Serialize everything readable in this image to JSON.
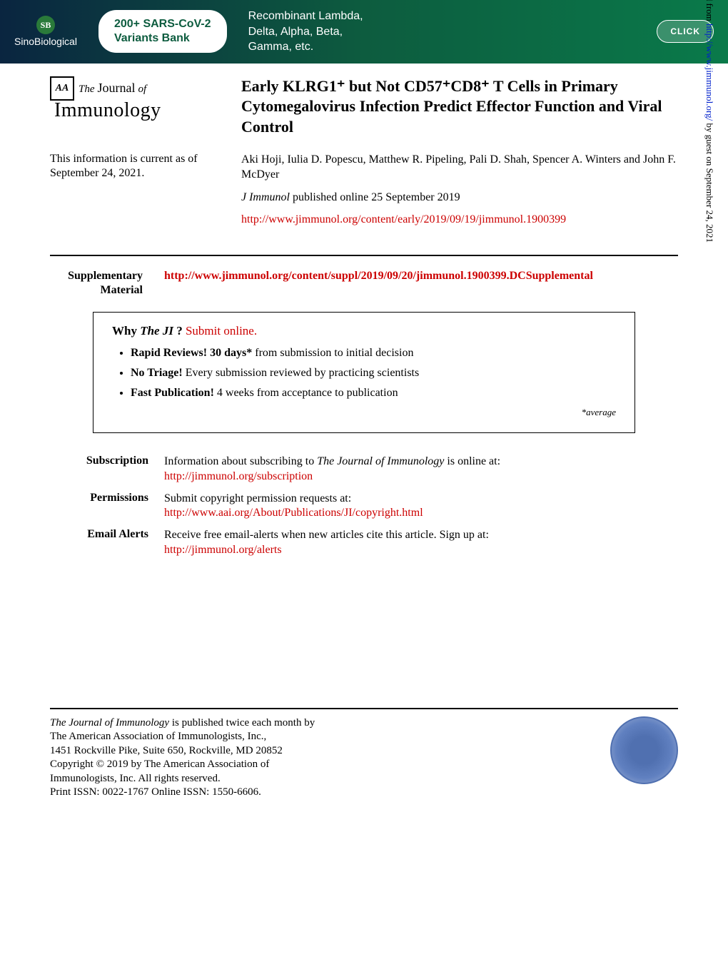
{
  "banner": {
    "logo_sb": "SB",
    "logo_text": "SinoBiological",
    "pill_line1": "200+ SARS-CoV-2",
    "pill_line2": "Variants Bank",
    "right_line1": "Recombinant Lambda,",
    "right_line2": "Delta, Alpha, Beta,",
    "right_line3": "Gamma, etc.",
    "click": "CLICK",
    "bg_gradient_start": "#0a2540",
    "bg_gradient_end": "#0a7a4a"
  },
  "journal": {
    "aa": "AA",
    "the": "The",
    "journal": "Journal",
    "of": "of",
    "immunology": "Immunology"
  },
  "article": {
    "title": "Early KLRG1⁺ but Not CD57⁺CD8⁺ T Cells in Primary Cytomegalovirus Infection Predict Effector Function and Viral Control"
  },
  "info": {
    "current_as_of_label": "This information is current as of September 24, 2021.",
    "authors": "Aki Hoji, Iulia D. Popescu, Matthew R. Pipeling, Pali D. Shah, Spencer A. Winters and John F. McDyer",
    "citation_journal": "J Immunol",
    "citation_rest": " published online 25 September 2019",
    "url": "http://www.jimmunol.org/content/early/2019/09/19/jimmunol.1900399"
  },
  "supp": {
    "label1": "Supplementary",
    "label2": "Material",
    "url": "http://www.jimmunol.org/content/suppl/2019/09/20/jimmunol.1900399.DCSupplemental"
  },
  "why": {
    "title_prefix": "Why ",
    "title_em": "The JI",
    "title_q": "? ",
    "submit": "Submit online.",
    "bullet1_bold": "Rapid Reviews! 30 days*",
    "bullet1_rest": " from submission to initial decision",
    "bullet2_bold": "No Triage!",
    "bullet2_rest": " Every submission reviewed by practicing scientists",
    "bullet3_bold": "Fast Publication!",
    "bullet3_rest": " 4 weeks from acceptance to publication",
    "average_prefix": "*",
    "average": "average"
  },
  "links": {
    "subscription_label": "Subscription",
    "subscription_text": "Information about subscribing to ",
    "subscription_em": "The Journal of Immunology",
    "subscription_rest": " is online at:",
    "subscription_url": "http://jimmunol.org/subscription",
    "permissions_label": "Permissions",
    "permissions_text": "Submit copyright permission requests at:",
    "permissions_url": "http://www.aai.org/About/Publications/JI/copyright.html",
    "alerts_label": "Email Alerts",
    "alerts_text": "Receive free email-alerts when new articles cite this article. Sign up at:",
    "alerts_url": "http://jimmunol.org/alerts"
  },
  "footer": {
    "line1_em": "The Journal of Immunology",
    "line1_rest": " is published twice each month by",
    "line2": "The American Association of Immunologists, Inc.,",
    "line3": "1451 Rockville Pike, Suite 650, Rockville, MD 20852",
    "line4": "Copyright © 2019 by The American Association of",
    "line5": "Immunologists, Inc. All rights reserved.",
    "line6": "Print ISSN: 0022-1767 Online ISSN: 1550-6606."
  },
  "sidebar": {
    "text_prefix": "Downloaded from ",
    "text_url": "http://www.jimmunol.org/",
    "text_suffix": " by guest on September 24, 2021"
  },
  "colors": {
    "link": "#cc0000",
    "text": "#000000",
    "bg": "#ffffff"
  },
  "typography": {
    "body_font": "Georgia, Times New Roman, serif",
    "title_fontsize": 22,
    "body_fontsize": 16
  }
}
